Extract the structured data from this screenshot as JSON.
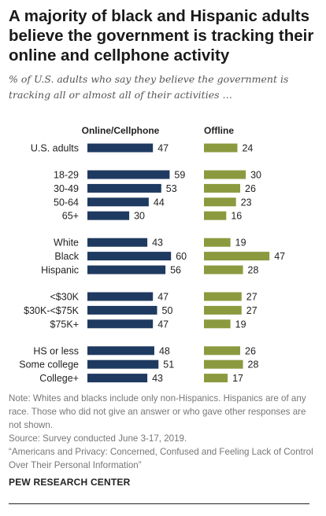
{
  "title": "A majority of black and Hispanic adults believe the government is tracking their online and cellphone activity",
  "subtitle": "% of U.S. adults who say they believe the government is tracking all or almost all of their activities …",
  "chart_data": {
    "type": "bar",
    "series": [
      {
        "name": "Online/Cellphone",
        "color": "#1f3a60"
      },
      {
        "name": "Offline",
        "color": "#8c9a3f"
      }
    ],
    "groups": [
      {
        "rows": [
          {
            "label": "U.S. adults",
            "online": 47,
            "offline": 24
          }
        ]
      },
      {
        "rows": [
          {
            "label": "18-29",
            "online": 59,
            "offline": 30
          },
          {
            "label": "30-49",
            "online": 53,
            "offline": 26
          },
          {
            "label": "50-64",
            "online": 44,
            "offline": 23
          },
          {
            "label": "65+",
            "online": 30,
            "offline": 16
          }
        ]
      },
      {
        "rows": [
          {
            "label": "White",
            "online": 43,
            "offline": 19
          },
          {
            "label": "Black",
            "online": 60,
            "offline": 47
          },
          {
            "label": "Hispanic",
            "online": 56,
            "offline": 28
          }
        ]
      },
      {
        "rows": [
          {
            "label": "<$30K",
            "online": 47,
            "offline": 27
          },
          {
            "label": "$30K-<$75K",
            "online": 50,
            "offline": 27
          },
          {
            "label": "$75K+",
            "online": 47,
            "offline": 19
          }
        ]
      },
      {
        "rows": [
          {
            "label": "HS or less",
            "online": 48,
            "offline": 26
          },
          {
            "label": "Some college",
            "online": 51,
            "offline": 28
          },
          {
            "label": "College+",
            "online": 43,
            "offline": 17
          }
        ]
      }
    ]
  },
  "notes": {
    "note": "Note: Whites and blacks include only non-Hispanics. Hispanics are of any race. Those who did not give an answer or who gave other responses are not shown.",
    "source": "Source: Survey conducted June 3-17, 2019.",
    "report": "“Americans and Privacy: Concerned, Confused and Feeling Lack of Control Over Their Personal Information”"
  },
  "org": "PEW RESEARCH CENTER"
}
